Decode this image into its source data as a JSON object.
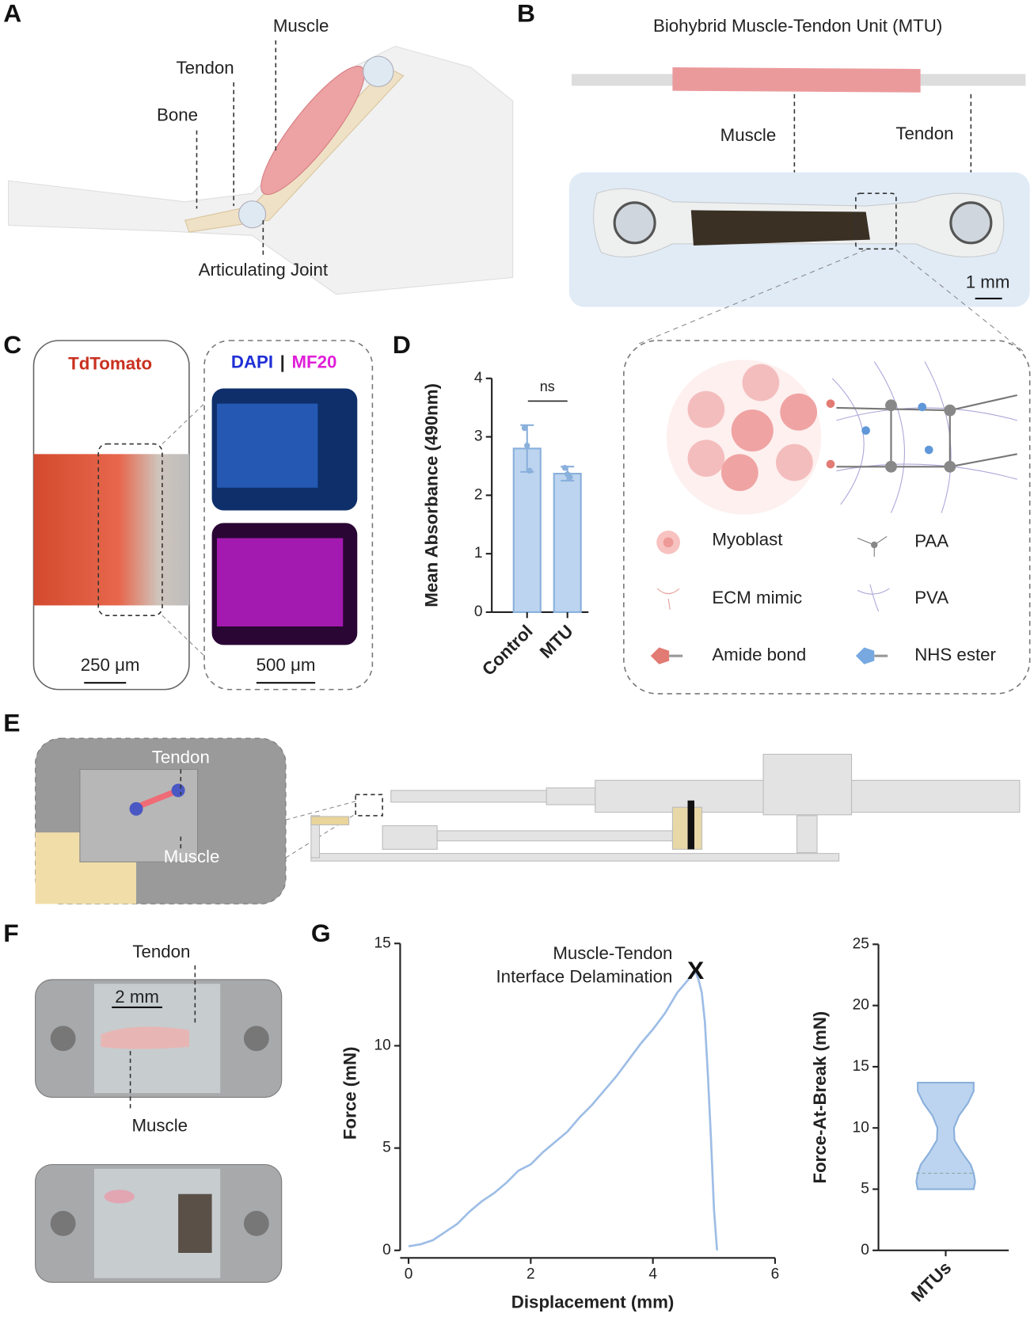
{
  "panel_labels": [
    "A",
    "B",
    "C",
    "D",
    "E",
    "F",
    "G"
  ],
  "panel_a": {
    "muscle": "Muscle",
    "tendon": "Tendon",
    "bone": "Bone",
    "joint": "Articulating Joint"
  },
  "panel_b": {
    "title": "Biohybrid Muscle-Tendon Unit (MTU)",
    "muscle": "Muscle",
    "tendon": "Tendon",
    "scale_bar": "1 mm",
    "legend": [
      "Myoblast",
      "PAA",
      "ECM mimic",
      "PVA",
      "Amide bond",
      "NHS ester"
    ]
  },
  "panel_c": {
    "tdtomato": "TdTomato",
    "dapi": "DAPI",
    "separator": "|",
    "mf20": "MF20",
    "scale_left": "250 μm",
    "scale_right": "500 μm"
  },
  "panel_e": {
    "tendon": "Tendon",
    "muscle": "Muscle"
  },
  "panel_f": {
    "tendon": "Tendon",
    "scale_bar": "2 mm",
    "muscle": "Muscle"
  },
  "chart_data": [
    {
      "type": "bar",
      "ylabel": "Mean Absorbance (490nm)",
      "categories": [
        "Control",
        "MTU"
      ],
      "values": [
        2.8,
        2.37
      ],
      "errors": [
        0.4,
        0.12
      ],
      "points": [
        [
          3.15,
          2.85,
          2.42
        ],
        [
          2.47,
          2.36,
          2.31
        ]
      ],
      "annotation": "ns",
      "color": "#bcd4ef",
      "edge_color": "#8ab0dc",
      "ylim": [
        0,
        4
      ],
      "yticks": [
        0,
        1,
        2,
        3,
        4
      ]
    },
    {
      "type": "line",
      "xlabel": "Displacement (mm)",
      "ylabel": "Force (mN)",
      "annotation": [
        "Muscle-Tendon",
        "Interface Delamination"
      ],
      "marker": "X",
      "color": "#9dbde6",
      "x": [
        0,
        0.2,
        0.4,
        0.6,
        0.8,
        1.0,
        1.2,
        1.4,
        1.6,
        1.8,
        2.0,
        2.2,
        2.4,
        2.6,
        2.8,
        3.0,
        3.2,
        3.4,
        3.6,
        3.8,
        4.0,
        4.2,
        4.4,
        4.6,
        4.7,
        4.75,
        4.8,
        4.85,
        4.9,
        4.95,
        5.0,
        5.05
      ],
      "values": [
        0.2,
        0.3,
        0.5,
        0.9,
        1.3,
        1.9,
        2.4,
        2.8,
        3.3,
        3.9,
        4.2,
        4.8,
        5.3,
        5.8,
        6.5,
        7.1,
        7.8,
        8.5,
        9.3,
        10.1,
        10.8,
        11.6,
        12.6,
        13.3,
        13.6,
        13.2,
        12.6,
        11.2,
        8.6,
        5.5,
        2.0,
        0
      ],
      "xlim": [
        0,
        6
      ],
      "ylim": [
        0,
        15
      ],
      "xticks": [
        0,
        2,
        4,
        6
      ],
      "yticks": [
        0,
        5,
        10,
        15
      ]
    },
    {
      "type": "violin",
      "ylabel": "Force-At-Break (mN)",
      "categories": [
        "MTUs"
      ],
      "median": 6.3,
      "kde": {
        "y": [
          5,
          5.6,
          6.3,
          7,
          8,
          9,
          10,
          11,
          12,
          13,
          13.7
        ],
        "width": [
          0.95,
          1,
          0.95,
          0.85,
          0.55,
          0.3,
          0.28,
          0.45,
          0.75,
          0.95,
          0.95
        ]
      },
      "color": "#bcd4ef",
      "edge_color": "#8ab0dc",
      "ylim": [
        0,
        25
      ],
      "yticks": [
        0,
        5,
        10,
        15,
        20,
        25
      ]
    }
  ]
}
